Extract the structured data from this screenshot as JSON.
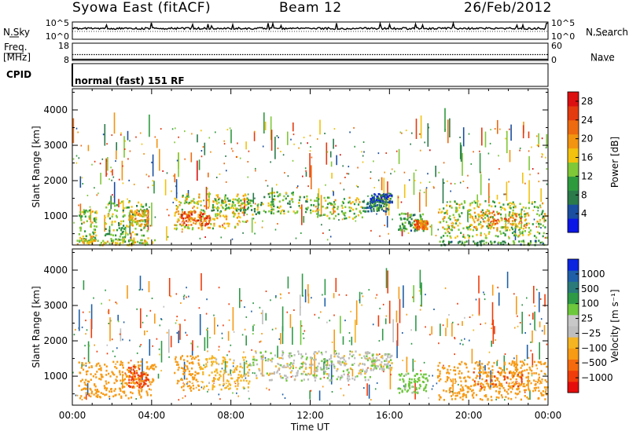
{
  "header": {
    "station": "Syowa East (fitACF)",
    "beam": "Beam 12",
    "date": "26/Feb/2012"
  },
  "noise_panel": {
    "left_label": "N.Sky",
    "right_label": "N.Search",
    "left_ticks": [
      "10^5",
      "10^0"
    ],
    "right_ticks": [
      "10^5",
      "10^0"
    ]
  },
  "freq_panel": {
    "left_label": "Freq.",
    "left_unit": "[MHz]",
    "right_label": "Nave",
    "left_ticks": [
      "18",
      "8"
    ],
    "right_ticks": [
      "60",
      "0"
    ]
  },
  "cpid_panel": {
    "label": "CPID",
    "mode": "normal (fast) 151 RF"
  },
  "colors": {
    "power": [
      "#0a16e6",
      "#1a4ea0",
      "#2a7a4a",
      "#2e9a3e",
      "#7fc837",
      "#f2c20e",
      "#f29410",
      "#ee6a10",
      "#e43a10",
      "#dc1010"
    ],
    "velocity": [
      "#e60c0c",
      "#f03c0a",
      "#f56a0c",
      "#f79a14",
      "#f5b422",
      "#bebebe",
      "#c8c8c8",
      "#6ec83c",
      "#2e9a46",
      "#2a7a7a",
      "#1e5fa8",
      "#0a24e0"
    ],
    "gray_scatter": "#bebebe"
  },
  "chart_data": [
    {
      "type": "heatmap",
      "title": "",
      "ylabel": "Slant Range [km]",
      "xlabel": "",
      "x_ticks": [
        "00:00",
        "04:00",
        "08:00",
        "12:00",
        "16:00",
        "20:00",
        "00:00"
      ],
      "y_ticks": [
        "1000",
        "2000",
        "3000",
        "4000"
      ],
      "xlim": [
        0,
        24
      ],
      "ylim": [
        180,
        4600
      ],
      "colorbar": {
        "label": "Power [dB]",
        "ticks": [
          "4",
          "8",
          "12",
          "16",
          "20",
          "24",
          "28"
        ],
        "range": [
          0,
          30
        ]
      },
      "regions": [
        {
          "t0": 0.3,
          "t1": 1.2,
          "r0": 300,
          "r1": 1200,
          "v": 14
        },
        {
          "t0": 1.6,
          "t1": 3.8,
          "r0": 300,
          "r1": 1450,
          "v": 12
        },
        {
          "t0": 2.8,
          "t1": 3.8,
          "r0": 750,
          "r1": 1200,
          "v": 18
        },
        {
          "t0": 5.1,
          "t1": 8.8,
          "r0": 650,
          "r1": 1650,
          "v": 16
        },
        {
          "t0": 5.4,
          "t1": 6.9,
          "r0": 750,
          "r1": 1150,
          "v": 24
        },
        {
          "t0": 7.0,
          "t1": 9.4,
          "r0": 1050,
          "r1": 1500,
          "v": 12
        },
        {
          "t0": 9.4,
          "t1": 12.0,
          "r0": 1100,
          "r1": 1700,
          "v": 12
        },
        {
          "t0": 12.0,
          "t1": 14.6,
          "r0": 950,
          "r1": 1550,
          "v": 14
        },
        {
          "t0": 14.6,
          "t1": 15.9,
          "r0": 1150,
          "r1": 1450,
          "v": 8
        },
        {
          "t0": 15.0,
          "t1": 16.1,
          "r0": 1400,
          "r1": 1650,
          "v": 5
        },
        {
          "t0": 16.4,
          "t1": 17.8,
          "r0": 600,
          "r1": 1100,
          "v": 10
        },
        {
          "t0": 17.2,
          "t1": 17.9,
          "r0": 650,
          "r1": 900,
          "v": 22
        },
        {
          "t0": 18.4,
          "t1": 23.9,
          "r0": 400,
          "r1": 1450,
          "v": 14
        },
        {
          "t0": 20.2,
          "t1": 23.0,
          "r0": 700,
          "r1": 1150,
          "v": 21
        },
        {
          "t0": 0.2,
          "t1": 4.2,
          "r0": 200,
          "r1": 350,
          "v": 16
        },
        {
          "t0": 18.4,
          "t1": 23.9,
          "r0": 200,
          "r1": 330,
          "v": 10
        }
      ]
    },
    {
      "type": "heatmap",
      "title": "",
      "ylabel": "Slant Range [km]",
      "xlabel": "Time UT",
      "x_ticks": [
        "00:00",
        "04:00",
        "08:00",
        "12:00",
        "16:00",
        "20:00",
        "00:00"
      ],
      "y_ticks": [
        "1000",
        "2000",
        "3000",
        "4000"
      ],
      "xlim": [
        0,
        24
      ],
      "ylim": [
        180,
        4600
      ],
      "colorbar": {
        "label": "Velocity [m s⁻¹]",
        "ticks": [
          "1000",
          "500",
          "100",
          "25",
          "−25",
          "−100",
          "−500",
          "−1000"
        ]
      },
      "regions": [
        {
          "t0": 0.3,
          "t1": 4.2,
          "r0": 400,
          "r1": 1450,
          "v": -250
        },
        {
          "t0": 2.8,
          "t1": 3.8,
          "r0": 700,
          "r1": 1300,
          "v": -700
        },
        {
          "t0": 5.1,
          "t1": 6.4,
          "r0": 600,
          "r1": 1600,
          "v": -300
        },
        {
          "t0": 6.4,
          "t1": 8.9,
          "r0": 650,
          "r1": 1600,
          "v": -60
        },
        {
          "t0": 8.9,
          "t1": 15.0,
          "r0": 900,
          "r1": 1750,
          "v": 5
        },
        {
          "t0": 15.0,
          "t1": 16.1,
          "r0": 1200,
          "r1": 1650,
          "v": 5
        },
        {
          "t0": 16.4,
          "t1": 17.9,
          "r0": 550,
          "r1": 1100,
          "v": 60
        },
        {
          "t0": 18.4,
          "t1": 23.9,
          "r0": 350,
          "r1": 1450,
          "v": -200
        },
        {
          "t0": 20.2,
          "t1": 23.0,
          "r0": 700,
          "r1": 1150,
          "v": -450
        }
      ]
    }
  ]
}
